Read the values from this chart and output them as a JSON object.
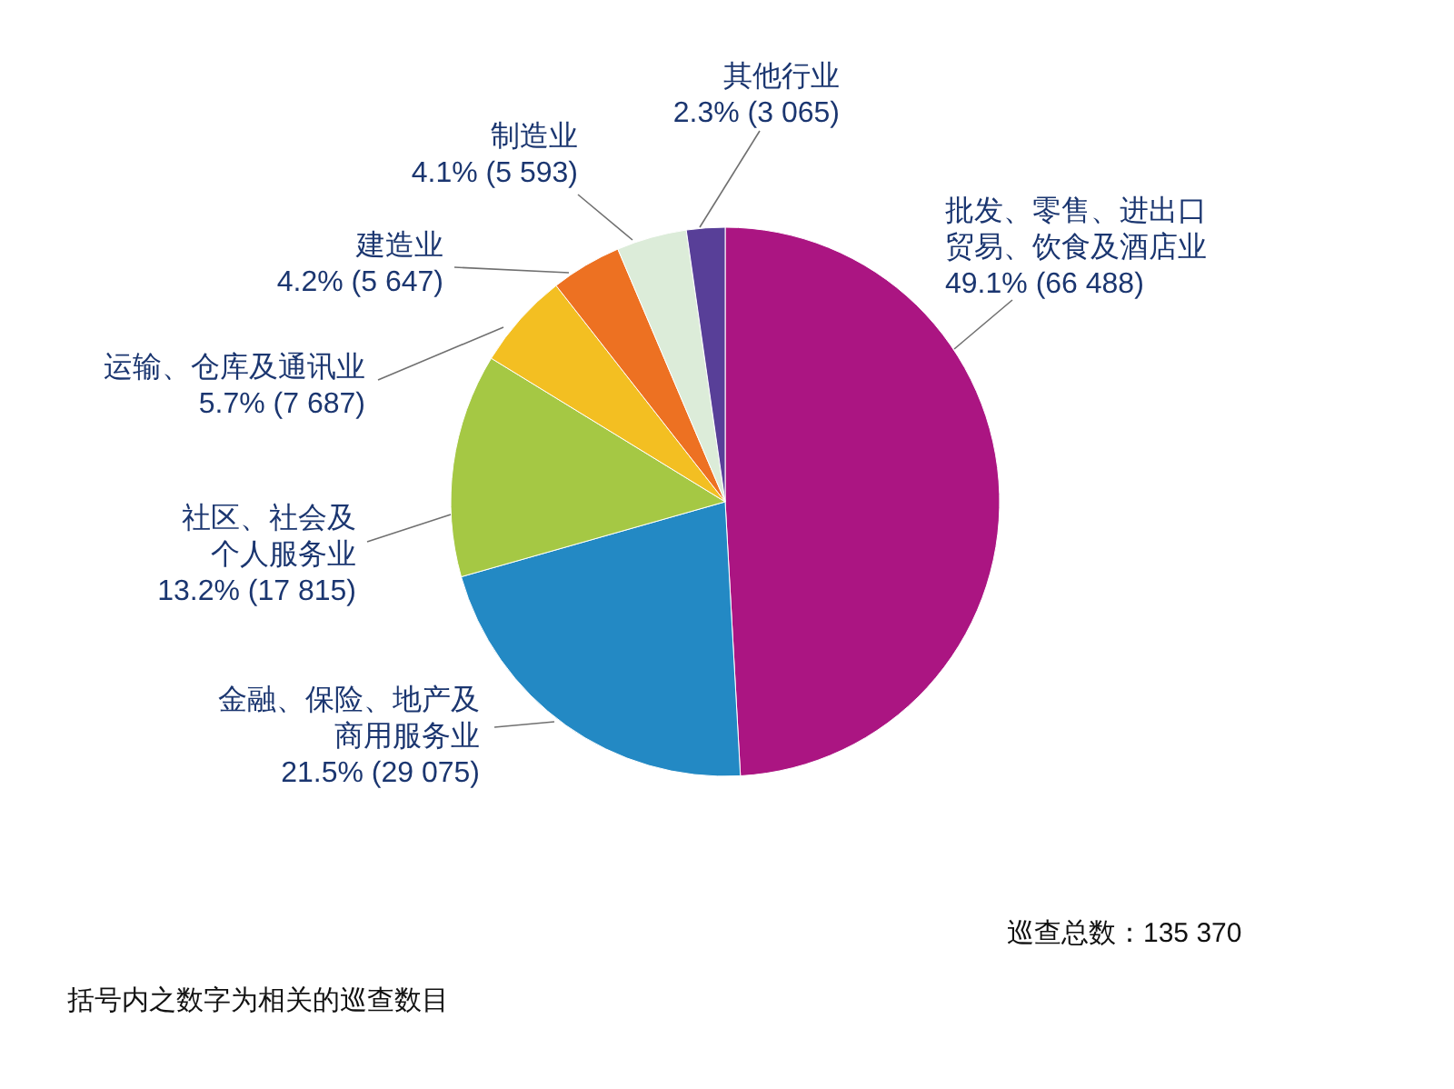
{
  "chart_data": {
    "type": "pie",
    "categories": [
      "批发、零售、进出口贸易、饮食及酒店业",
      "金融、保险、地产及商用服务业",
      "社区、社会及个人服务业",
      "运输、仓库及通讯业",
      "建造业",
      "制造业",
      "其他行业"
    ],
    "values": [
      66488,
      29075,
      17815,
      7687,
      5647,
      5593,
      3065
    ],
    "colors": [
      "#ab1582",
      "#2389c4",
      "#a5c844",
      "#f3bf22",
      "#ed7122",
      "#dcecd9",
      "#583f98"
    ],
    "value_labels": [
      "49.1% (66 488)",
      "21.5% (29 075)",
      "13.2% (17 815)",
      "5.7% (7 687)",
      "4.2% (5 647)",
      "4.1% (5 593)",
      "2.3% (3 065)"
    ],
    "annotations": [
      "巡查总数：135 370",
      "括号内之数字为相关的巡查数目"
    ]
  }
}
